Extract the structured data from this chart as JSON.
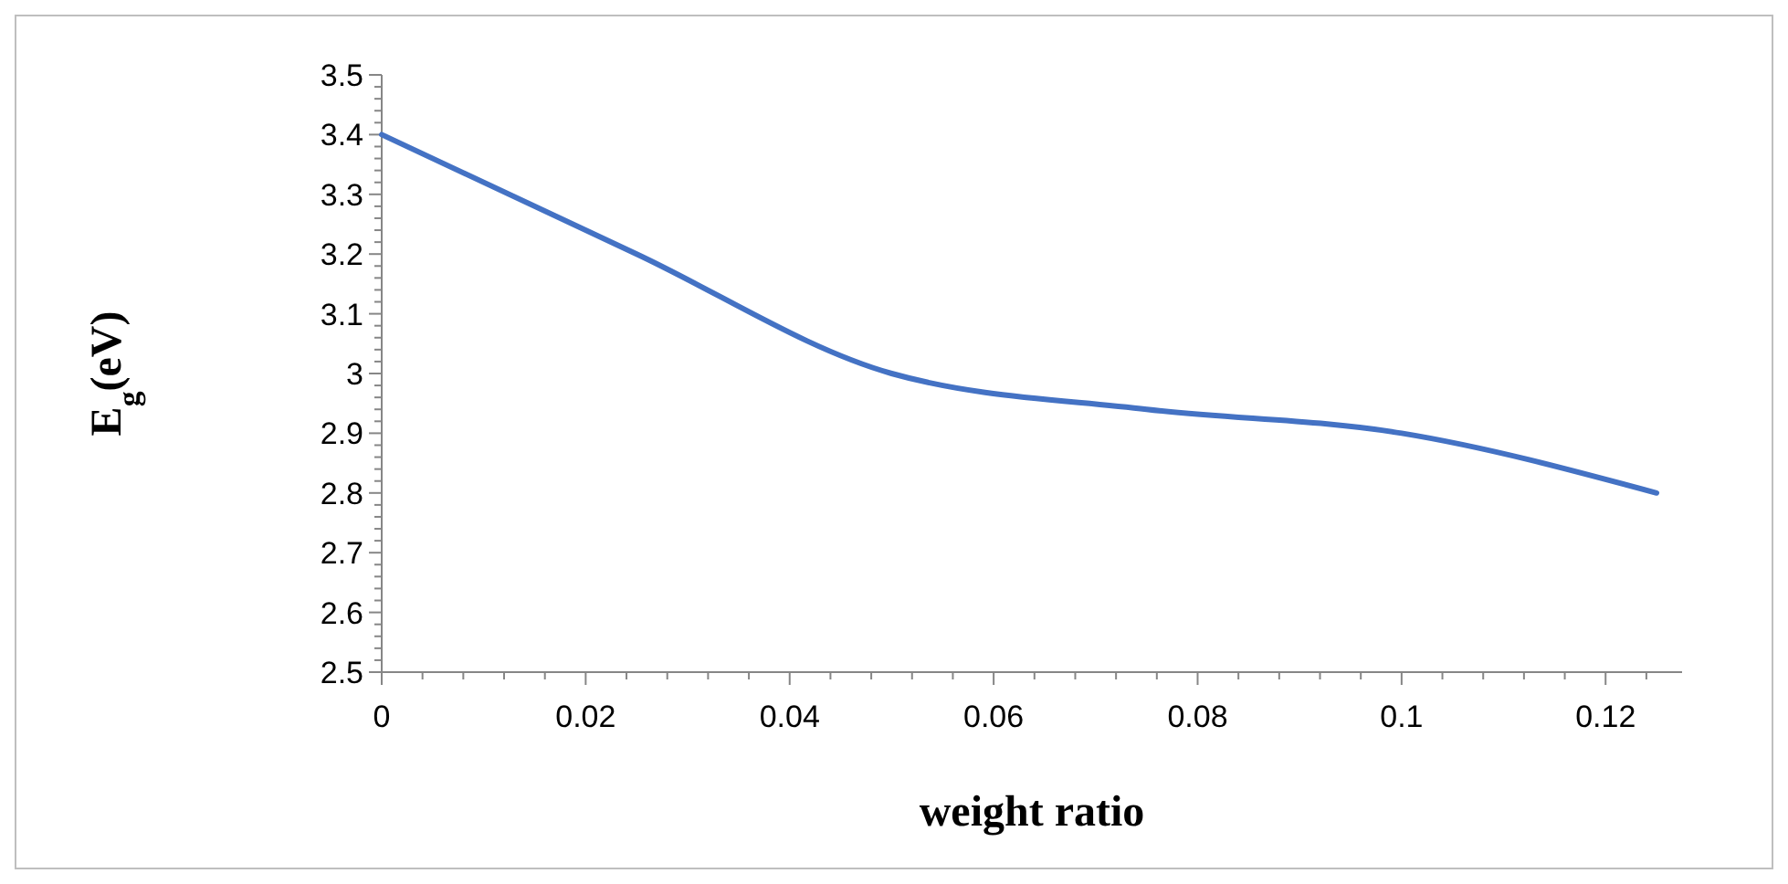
{
  "chart_data": {
    "type": "line",
    "xlabel": "weight ratio",
    "ylabel": "E$_{g}$(eV)",
    "x": [
      0,
      0.025,
      0.05,
      0.075,
      0.1,
      0.125
    ],
    "series": [
      {
        "color": "#4472c4",
        "values": [
          3.4,
          3.2,
          3.0,
          2.94,
          2.9,
          2.8
        ]
      }
    ],
    "xlim": [
      0,
      0.1275
    ],
    "ylim": [
      2.5,
      3.5
    ],
    "xticks": [
      0,
      {
        "value": 0.004,
        "label": null
      },
      {
        "value": 0.008,
        "label": null
      },
      {
        "value": 0.012,
        "label": null
      },
      {
        "value": 0.016,
        "label": null
      },
      0.02,
      {
        "value": 0.024,
        "label": null
      },
      {
        "value": 0.028,
        "label": null
      },
      {
        "value": 0.032,
        "label": null
      },
      {
        "value": 0.036,
        "label": null
      },
      0.04,
      {
        "value": 0.044,
        "label": null
      },
      {
        "value": 0.048,
        "label": null
      },
      {
        "value": 0.052,
        "label": null
      },
      {
        "value": 0.056,
        "label": null
      },
      0.06,
      {
        "value": 0.064,
        "label": null
      },
      {
        "value": 0.068,
        "label": null
      },
      {
        "value": 0.072,
        "label": null
      },
      {
        "value": 0.076,
        "label": null
      },
      0.08,
      {
        "value": 0.084,
        "label": null
      },
      {
        "value": 0.088,
        "label": null
      },
      {
        "value": 0.092,
        "label": null
      },
      {
        "value": 0.096,
        "label": null
      },
      0.1,
      {
        "value": 0.104,
        "label": null
      },
      {
        "value": 0.108,
        "label": null
      },
      {
        "value": 0.112,
        "label": null
      },
      {
        "value": 0.116,
        "label": null
      },
      0.12,
      {
        "value": 0.124,
        "label": null
      }
    ],
    "yticks": [
      2.5,
      {
        "value": 2.52,
        "label": null
      },
      {
        "value": 2.54,
        "label": null
      },
      {
        "value": 2.56,
        "label": null
      },
      {
        "value": 2.58,
        "label": null
      },
      2.6,
      {
        "value": 2.62,
        "label": null
      },
      {
        "value": 2.64,
        "label": null
      },
      {
        "value": 2.66,
        "label": null
      },
      {
        "value": 2.68,
        "label": null
      },
      2.7,
      {
        "value": 2.72,
        "label": null
      },
      {
        "value": 2.74,
        "label": null
      },
      {
        "value": 2.76,
        "label": null
      },
      {
        "value": 2.78,
        "label": null
      },
      2.8,
      {
        "value": 2.82,
        "label": null
      },
      {
        "value": 2.84,
        "label": null
      },
      {
        "value": 2.86,
        "label": null
      },
      {
        "value": 2.88,
        "label": null
      },
      2.9,
      {
        "value": 2.92,
        "label": null
      },
      {
        "value": 2.94,
        "label": null
      },
      {
        "value": 2.96,
        "label": null
      },
      {
        "value": 2.98,
        "label": null
      },
      3,
      {
        "value": 3.02,
        "label": null
      },
      {
        "value": 3.04,
        "label": null
      },
      {
        "value": 3.06,
        "label": null
      },
      {
        "value": 3.08,
        "label": null
      },
      3.1,
      {
        "value": 3.12,
        "label": null
      },
      {
        "value": 3.14,
        "label": null
      },
      {
        "value": 3.16,
        "label": null
      },
      {
        "value": 3.18,
        "label": null
      },
      3.2,
      {
        "value": 3.22,
        "label": null
      },
      {
        "value": 3.24,
        "label": null
      },
      {
        "value": 3.26,
        "label": null
      },
      {
        "value": 3.28,
        "label": null
      },
      3.3,
      {
        "value": 3.32,
        "label": null
      },
      {
        "value": 3.34,
        "label": null
      },
      {
        "value": 3.36,
        "label": null
      },
      {
        "value": 3.38,
        "label": null
      },
      3.4,
      {
        "value": 3.42,
        "label": null
      },
      {
        "value": 3.44,
        "label": null
      },
      {
        "value": 3.46,
        "label": null
      },
      {
        "value": 3.48,
        "label": null
      },
      3.5
    ],
    "grid": false,
    "marker": "none",
    "line_style": "solid"
  }
}
